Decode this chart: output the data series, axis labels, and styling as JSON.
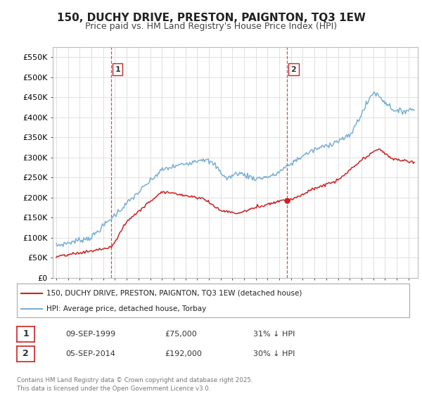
{
  "title_line1": "150, DUCHY DRIVE, PRESTON, PAIGNTON, TQ3 1EW",
  "title_line2": "Price paid vs. HM Land Registry's House Price Index (HPI)",
  "ylim": [
    0,
    575000
  ],
  "yticks": [
    0,
    50000,
    100000,
    150000,
    200000,
    250000,
    300000,
    350000,
    400000,
    450000,
    500000,
    550000
  ],
  "ytick_labels": [
    "£0",
    "£50K",
    "£100K",
    "£150K",
    "£200K",
    "£250K",
    "£300K",
    "£350K",
    "£400K",
    "£450K",
    "£500K",
    "£550K"
  ],
  "background_color": "#ffffff",
  "grid_color": "#e0e0e0",
  "hpi_color": "#7ab0d4",
  "price_color": "#cc2222",
  "vline_color": "#cc3333",
  "marker1_x": 1999.69,
  "marker2_x": 2014.68,
  "marker1_y": 75000,
  "marker2_y": 192000,
  "xlim_left": 1994.7,
  "xlim_right": 2025.8,
  "legend_label1": "150, DUCHY DRIVE, PRESTON, PAIGNTON, TQ3 1EW (detached house)",
  "legend_label2": "HPI: Average price, detached house, Torbay",
  "table_row1": [
    "1",
    "09-SEP-1999",
    "£75,000",
    "31% ↓ HPI"
  ],
  "table_row2": [
    "2",
    "05-SEP-2014",
    "£192,000",
    "30% ↓ HPI"
  ],
  "footer": "Contains HM Land Registry data © Crown copyright and database right 2025.\nThis data is licensed under the Open Government Licence v3.0."
}
